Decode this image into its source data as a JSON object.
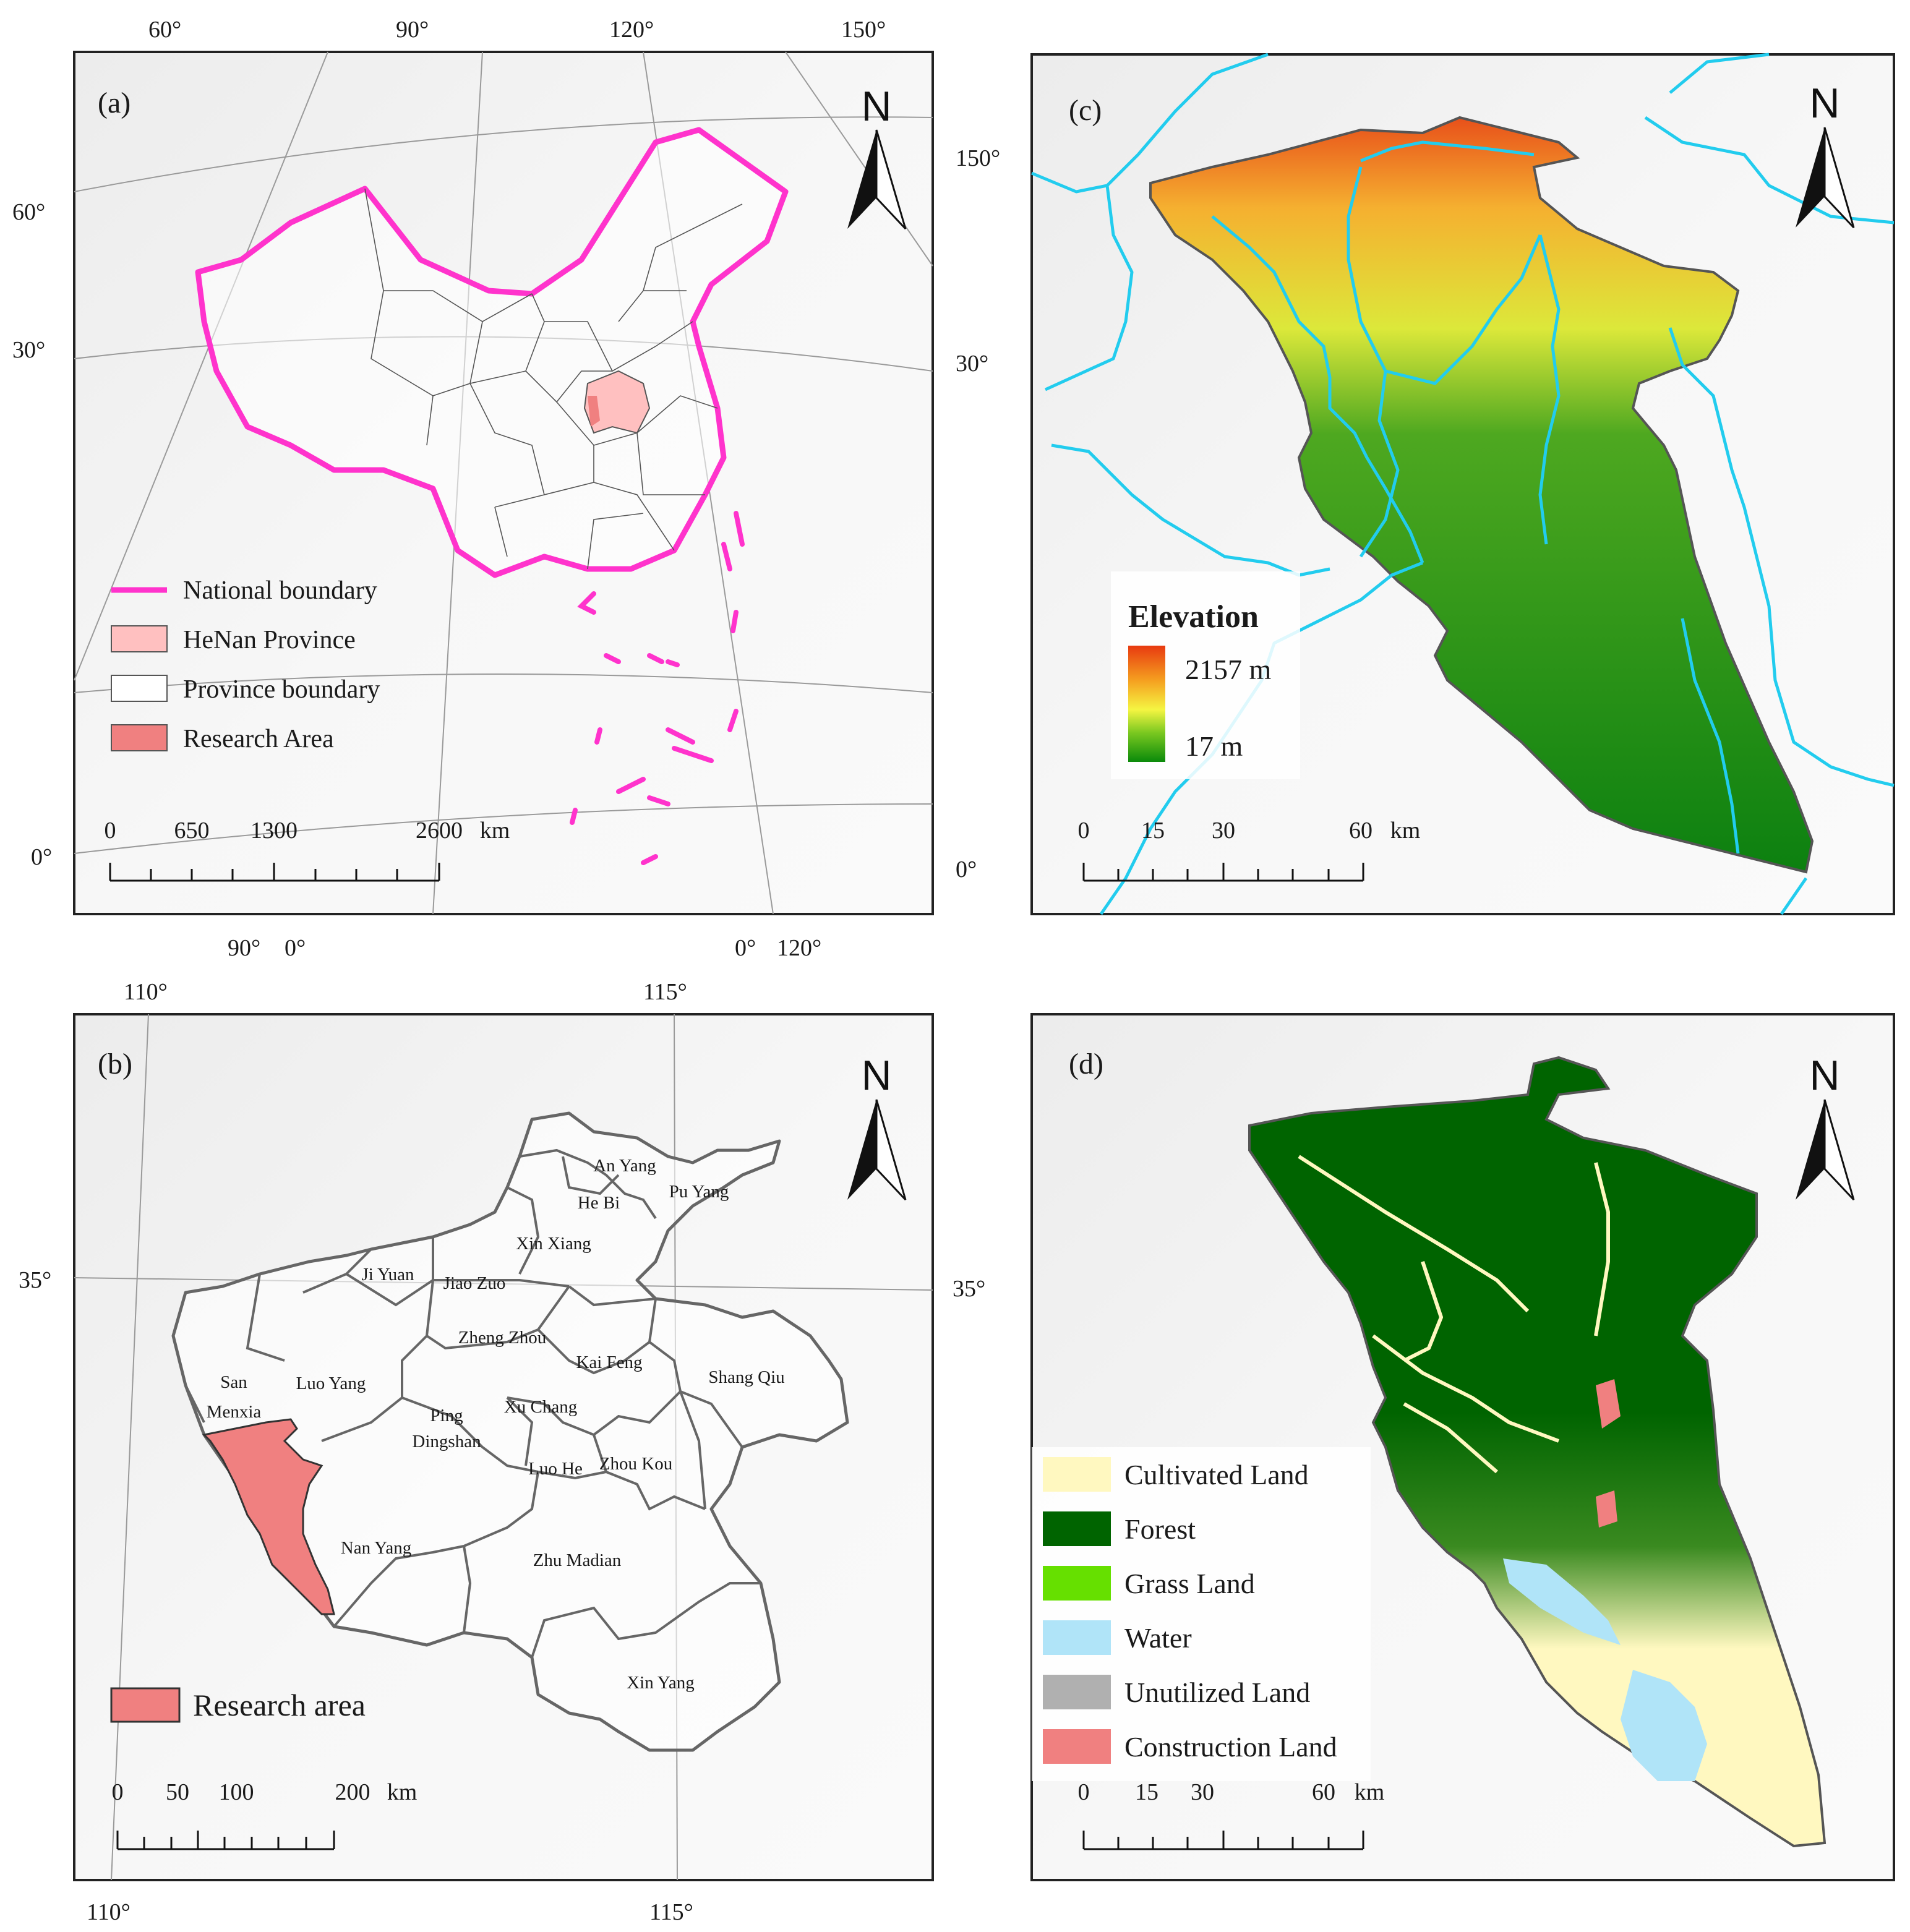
{
  "panel_a": {
    "label": "(a)",
    "north": "N",
    "ticks_top": [
      "60°",
      "90°",
      "120°",
      "150°"
    ],
    "ticks_left": [
      "60°",
      "30°",
      "0°"
    ],
    "ticks_right": [
      "150°",
      "30°",
      "0°"
    ],
    "ticks_bottom": [
      "90°",
      "0°",
      "0°",
      "120°"
    ],
    "legend": [
      "National boundary",
      "HeNan Province",
      "Province boundary",
      "Research Area"
    ],
    "scale": [
      "0",
      "650",
      "1300",
      "2600",
      "km"
    ],
    "colors": {
      "national": "#ff33cc",
      "henan": "#ffc0c0",
      "research": "#f08080"
    }
  },
  "panel_b": {
    "label": "(b)",
    "north": "N",
    "ticks_top": [
      "110°",
      "115°"
    ],
    "ticks_left": [
      "35°"
    ],
    "ticks_right": [
      "35°"
    ],
    "ticks_bottom": [
      "110°",
      "115°"
    ],
    "cities": [
      "An Yang",
      "He Bi",
      "Pu Yang",
      "Xin Xiang",
      "Ji Yuan",
      "Jiao Zuo",
      "Zheng Zhou",
      "Kai Feng",
      "Shang Qiu",
      "San",
      "Menxia",
      "Luo Yang",
      "Ping",
      "Dingshan",
      "Xu Chang",
      "Luo He",
      "Zhou Kou",
      "Nan Yang",
      "Zhu Madian",
      "Xin Yang"
    ],
    "legend": [
      "Research area"
    ],
    "scale": [
      "0",
      "50",
      "100",
      "200",
      "km"
    ]
  },
  "panel_c": {
    "label": "(c)",
    "north": "N",
    "legend_title": "Elevation",
    "legend_max": "2157 m",
    "legend_min": "17 m",
    "scale": [
      "0",
      "15",
      "30",
      "60",
      "km"
    ],
    "colors": {
      "river": "#22ccee",
      "high": "#e83a10",
      "mid": "#f5f542",
      "low": "#0a8a0a"
    }
  },
  "panel_d": {
    "label": "(d)",
    "north": "N",
    "legend": [
      "Cultivated Land",
      "Forest",
      "Grass Land",
      "Water",
      "Unutilized Land",
      "Construction Land"
    ],
    "scale": [
      "0",
      "15",
      "30",
      "60",
      "km"
    ],
    "colors": {
      "cultivated": "#fff8c0",
      "forest": "#006400",
      "grass": "#66e000",
      "water": "#b0e4f8",
      "unutilized": "#b0b0b0",
      "construction": "#f08080"
    }
  }
}
